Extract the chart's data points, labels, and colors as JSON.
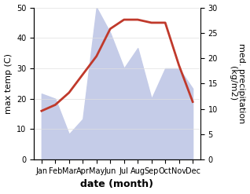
{
  "months": [
    "Jan",
    "Feb",
    "Mar",
    "Apr",
    "May",
    "Jun",
    "Jul",
    "Aug",
    "Sep",
    "Oct",
    "Nov",
    "Dec"
  ],
  "temp": [
    16,
    18,
    22,
    28,
    34,
    43,
    46,
    46,
    45,
    45,
    31,
    19
  ],
  "precip": [
    13,
    12,
    5,
    8,
    30,
    25,
    18,
    22,
    12,
    18,
    18,
    14
  ],
  "temp_color": "#c0392b",
  "precip_fill_color": "#c5cce8",
  "precip_edge_color": "#aab4d8",
  "ylabel_left": "max temp (C)",
  "ylabel_right": "med. precipitation\n(kg/m2)",
  "xlabel": "date (month)",
  "ylim_left": [
    0,
    50
  ],
  "ylim_right": [
    0,
    30
  ],
  "yticks_left": [
    0,
    10,
    20,
    30,
    40,
    50
  ],
  "yticks_right": [
    0,
    5,
    10,
    15,
    20,
    25,
    30
  ],
  "bg_color": "#ffffff",
  "grid_color": "#e0e0e0",
  "temp_linewidth": 2.0,
  "title_fontsize": 8,
  "label_fontsize": 8,
  "tick_fontsize": 7
}
